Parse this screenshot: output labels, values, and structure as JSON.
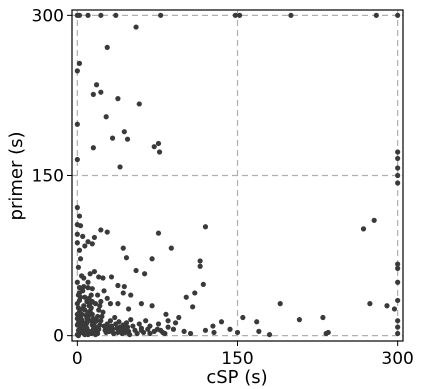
{
  "chart_data": {
    "type": "scatter",
    "xlabel": "cSP (s)",
    "ylabel": "primer (s)",
    "xlim": [
      -5,
      305
    ],
    "ylim": [
      -5,
      305
    ],
    "xticks": [
      0,
      150,
      300
    ],
    "yticks": [
      0,
      150,
      300
    ],
    "grid": true,
    "point_color": "#3a3a3a",
    "grid_color": "#b0b0b0",
    "series": [
      {
        "points": [
          [
            0,
            300
          ],
          [
            2,
            300
          ],
          [
            10,
            300
          ],
          [
            22,
            300
          ],
          [
            36,
            300
          ],
          [
            78,
            300
          ],
          [
            148,
            300
          ],
          [
            152,
            300
          ],
          [
            200,
            300
          ],
          [
            280,
            300
          ],
          [
            300,
            300
          ],
          [
            28,
            270
          ],
          [
            55,
            289
          ],
          [
            2,
            255
          ],
          [
            0,
            248
          ],
          [
            18,
            235
          ],
          [
            22,
            228
          ],
          [
            15,
            226
          ],
          [
            38,
            222
          ],
          [
            58,
            217
          ],
          [
            27,
            205
          ],
          [
            0,
            198
          ],
          [
            44,
            191
          ],
          [
            33,
            185
          ],
          [
            47,
            184
          ],
          [
            15,
            176
          ],
          [
            72,
            177
          ],
          [
            76,
            180
          ],
          [
            77,
            172
          ],
          [
            0,
            165
          ],
          [
            40,
            158
          ],
          [
            300,
            172
          ],
          [
            300,
            166
          ],
          [
            300,
            157
          ],
          [
            300,
            150
          ],
          [
            300,
            143
          ],
          [
            0,
            120
          ],
          [
            2,
            112
          ],
          [
            0,
            104
          ],
          [
            3,
            103
          ],
          [
            0,
            95
          ],
          [
            5,
            93
          ],
          [
            0,
            87
          ],
          [
            2,
            80
          ],
          [
            7,
            84
          ],
          [
            10,
            88
          ],
          [
            16,
            92
          ],
          [
            14,
            86
          ],
          [
            22,
            99
          ],
          [
            28,
            97
          ],
          [
            3,
            72
          ],
          [
            1,
            64
          ],
          [
            4,
            56
          ],
          [
            0,
            50
          ],
          [
            6,
            46
          ],
          [
            10,
            45
          ],
          [
            2,
            40
          ],
          [
            13,
            38
          ],
          [
            2,
            33
          ],
          [
            43,
            82
          ],
          [
            88,
            82
          ],
          [
            76,
            96
          ],
          [
            70,
            72
          ],
          [
            63,
            58
          ],
          [
            55,
            61
          ],
          [
            46,
            73
          ],
          [
            32,
            55
          ],
          [
            38,
            47
          ],
          [
            44,
            46
          ],
          [
            20,
            55
          ],
          [
            16,
            60
          ],
          [
            24,
            54
          ],
          [
            12,
            58
          ],
          [
            6,
            54
          ],
          [
            10,
            50
          ],
          [
            14,
            44
          ],
          [
            25,
            42
          ],
          [
            28,
            35
          ],
          [
            31,
            30
          ],
          [
            50,
            38
          ],
          [
            43,
            40
          ],
          [
            38,
            30
          ],
          [
            48,
            25
          ],
          [
            60,
            30
          ],
          [
            70,
            28
          ],
          [
            83,
            20
          ],
          [
            85,
            14
          ],
          [
            120,
            102
          ],
          [
            115,
            70
          ],
          [
            115,
            65
          ],
          [
            118,
            48
          ],
          [
            110,
            40
          ],
          [
            102,
            36
          ],
          [
            108,
            27
          ],
          [
            95,
            17
          ],
          [
            92,
            12
          ],
          [
            90,
            6
          ],
          [
            127,
            9
          ],
          [
            135,
            13
          ],
          [
            143,
            6
          ],
          [
            155,
            17
          ],
          [
            168,
            13
          ],
          [
            170,
            4
          ],
          [
            190,
            30
          ],
          [
            208,
            15
          ],
          [
            230,
            17
          ],
          [
            235,
            3
          ],
          [
            233,
            2
          ],
          [
            268,
            100
          ],
          [
            278,
            108
          ],
          [
            274,
            30
          ],
          [
            290,
            28
          ],
          [
            297,
            25
          ],
          [
            300,
            67
          ],
          [
            300,
            63
          ],
          [
            300,
            50
          ],
          [
            300,
            33
          ],
          [
            300,
            14
          ],
          [
            300,
            8
          ],
          [
            300,
            2
          ],
          [
            120,
            5
          ],
          [
            128,
            3
          ],
          [
            150,
            3
          ],
          [
            180,
            1
          ],
          [
            60,
            5
          ],
          [
            68,
            2
          ],
          [
            75,
            6
          ],
          [
            80,
            3
          ],
          [
            85,
            8
          ],
          [
            100,
            4
          ],
          [
            106,
            2
          ],
          [
            0,
            30
          ],
          [
            1,
            26
          ],
          [
            2,
            22
          ],
          [
            3,
            18
          ],
          [
            4,
            15
          ],
          [
            5,
            12
          ],
          [
            6,
            9
          ],
          [
            7,
            7
          ],
          [
            8,
            5
          ],
          [
            9,
            3
          ],
          [
            10,
            1
          ],
          [
            0,
            1
          ],
          [
            1,
            0
          ],
          [
            2,
            2
          ],
          [
            3,
            4
          ],
          [
            4,
            6
          ],
          [
            5,
            8
          ],
          [
            6,
            3
          ],
          [
            7,
            1
          ],
          [
            8,
            9
          ],
          [
            9,
            12
          ],
          [
            10,
            15
          ],
          [
            11,
            19
          ],
          [
            12,
            23
          ],
          [
            13,
            26
          ],
          [
            14,
            20
          ],
          [
            15,
            16
          ],
          [
            16,
            12
          ],
          [
            17,
            8
          ],
          [
            18,
            4
          ],
          [
            19,
            2
          ],
          [
            20,
            6
          ],
          [
            21,
            10
          ],
          [
            22,
            14
          ],
          [
            23,
            18
          ],
          [
            24,
            22
          ],
          [
            25,
            9
          ],
          [
            26,
            5
          ],
          [
            27,
            3
          ],
          [
            28,
            11
          ],
          [
            29,
            7
          ],
          [
            30,
            4
          ],
          [
            31,
            14
          ],
          [
            32,
            9
          ],
          [
            33,
            6
          ],
          [
            34,
            2
          ],
          [
            35,
            17
          ],
          [
            36,
            11
          ],
          [
            37,
            7
          ],
          [
            38,
            3
          ],
          [
            39,
            13
          ],
          [
            40,
            8
          ],
          [
            41,
            5
          ],
          [
            42,
            2
          ],
          [
            43,
            10
          ],
          [
            44,
            6
          ],
          [
            45,
            3
          ],
          [
            46,
            12
          ],
          [
            47,
            8
          ],
          [
            48,
            4
          ],
          [
            49,
            1
          ],
          [
            50,
            15
          ],
          [
            52,
            9
          ],
          [
            54,
            5
          ],
          [
            56,
            2
          ],
          [
            58,
            11
          ],
          [
            60,
            7
          ],
          [
            62,
            3
          ],
          [
            64,
            14
          ],
          [
            66,
            6
          ],
          [
            68,
            9
          ],
          [
            72,
            4
          ],
          [
            76,
            11
          ],
          [
            78,
            5
          ],
          [
            82,
            2
          ],
          [
            1,
            12
          ],
          [
            2,
            9
          ],
          [
            3,
            11
          ],
          [
            4,
            20
          ],
          [
            5,
            25
          ],
          [
            6,
            28
          ],
          [
            7,
            24
          ],
          [
            8,
            19
          ],
          [
            9,
            16
          ],
          [
            10,
            22
          ],
          [
            11,
            28
          ],
          [
            12,
            30
          ],
          [
            13,
            14
          ],
          [
            14,
            10
          ],
          [
            15,
            6
          ],
          [
            16,
            3
          ],
          [
            17,
            1
          ],
          [
            18,
            14
          ],
          [
            19,
            18
          ],
          [
            20,
            24
          ],
          [
            21,
            28
          ],
          [
            22,
            32
          ],
          [
            1,
            5
          ],
          [
            3,
            7
          ],
          [
            5,
            3
          ],
          [
            7,
            12
          ],
          [
            9,
            7
          ],
          [
            11,
            4
          ],
          [
            13,
            2
          ],
          [
            0,
            10
          ],
          [
            0,
            16
          ],
          [
            0,
            20
          ],
          [
            1,
            38
          ],
          [
            2,
            45
          ],
          [
            3,
            36
          ],
          [
            5,
            42
          ],
          [
            7,
            36
          ],
          [
            9,
            32
          ],
          [
            11,
            35
          ],
          [
            14,
            32
          ],
          [
            17,
            30
          ],
          [
            19,
            38
          ]
        ]
      }
    ]
  }
}
